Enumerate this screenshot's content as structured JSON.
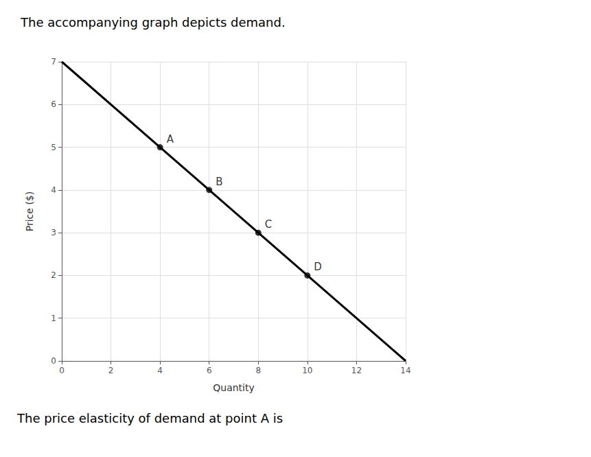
{
  "chart_data": {
    "type": "line",
    "title": "The accompanying graph depicts demand.",
    "annotations": [
      "The price elasticity of demand at point A is"
    ],
    "xlabel": "Quantity",
    "ylabel": "Price ($)",
    "series": [
      {
        "type": "line",
        "x": [
          0,
          14
        ],
        "values": [
          7,
          0
        ],
        "color": "#000000"
      },
      {
        "type": "scatter",
        "x": [
          4,
          6,
          8,
          10
        ],
        "values": [
          5,
          4,
          3,
          2
        ],
        "labels": [
          "A",
          "B",
          "C",
          "D"
        ],
        "color": "#000000",
        "marker": "circle"
      }
    ],
    "xlim": [
      0,
      14
    ],
    "ylim": [
      0,
      7
    ],
    "xticks": [
      0,
      2,
      4,
      6,
      8,
      10,
      12,
      14
    ],
    "yticks": [
      0,
      1,
      2,
      3,
      4,
      5,
      6,
      7
    ],
    "grid": true
  }
}
